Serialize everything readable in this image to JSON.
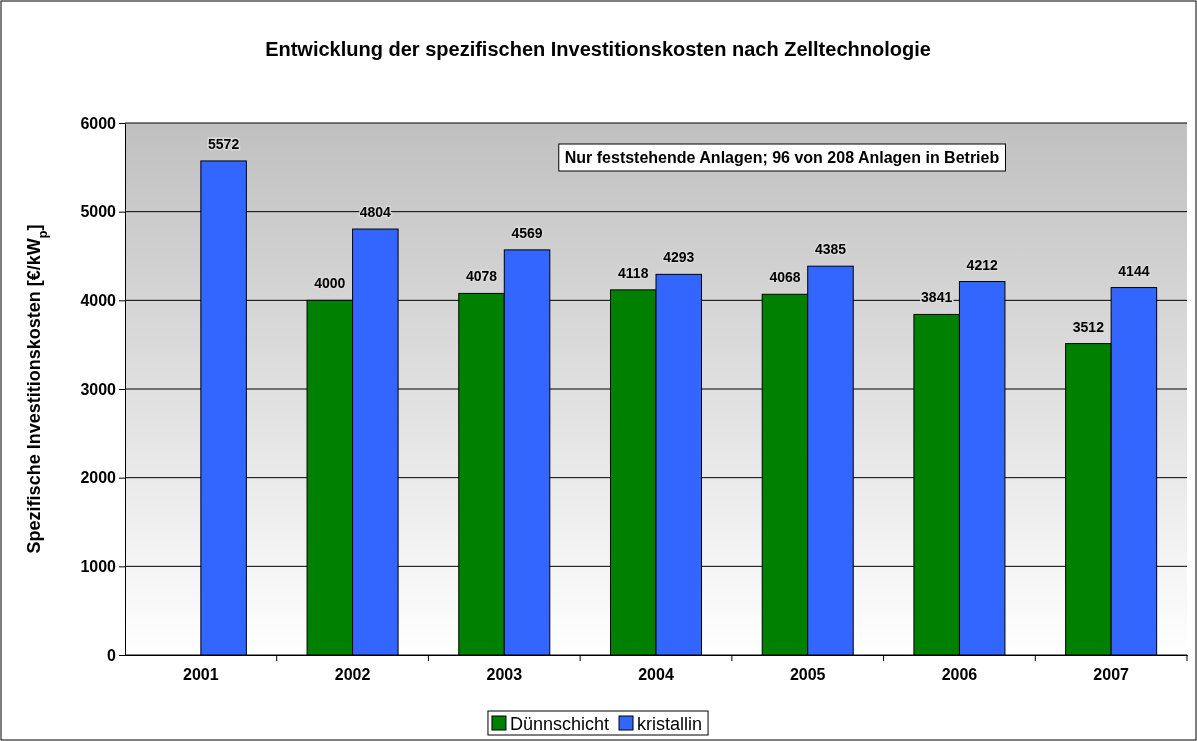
{
  "chart_data": {
    "type": "bar",
    "title": "Entwicklung der spezifischen Investitionskosten nach Zelltechnologie",
    "ylabel": "Spezifische Investitionskosten [€/kW$_{p}$]",
    "annotations": [
      "Nur feststehende Anlagen; 96 von 208 Anlagen in Betrieb"
    ],
    "categories": [
      "2001",
      "2002",
      "2003",
      "2004",
      "2005",
      "2006",
      "2007"
    ],
    "series": [
      {
        "name": "Dünnschicht",
        "color": "#008000",
        "values": [
          null,
          4000,
          4078,
          4118,
          4068,
          3841,
          3512
        ]
      },
      {
        "name": "kristallin",
        "color": "#3366ff",
        "values": [
          5572,
          4804,
          4569,
          4293,
          4385,
          4212,
          4144
        ]
      }
    ],
    "ylim": [
      0,
      6000
    ],
    "yticks": [
      0,
      1000,
      2000,
      3000,
      4000,
      5000,
      6000
    ],
    "grid": "y",
    "legend": "bottom",
    "data_labels": true
  }
}
